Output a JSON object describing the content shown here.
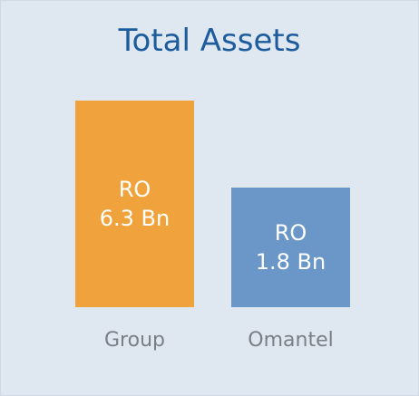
{
  "chart_data": {
    "type": "bar",
    "title": "Total Assets",
    "categories": [
      "Group",
      "Omantel"
    ],
    "values": [
      6.3,
      1.8
    ],
    "value_labels": [
      "RO\n6.3 Bn",
      "RO\n1.8 Bn"
    ],
    "colors": [
      "#f0a33c",
      "#6a96c8"
    ],
    "ylim": [
      -4.4,
      7.5
    ]
  }
}
